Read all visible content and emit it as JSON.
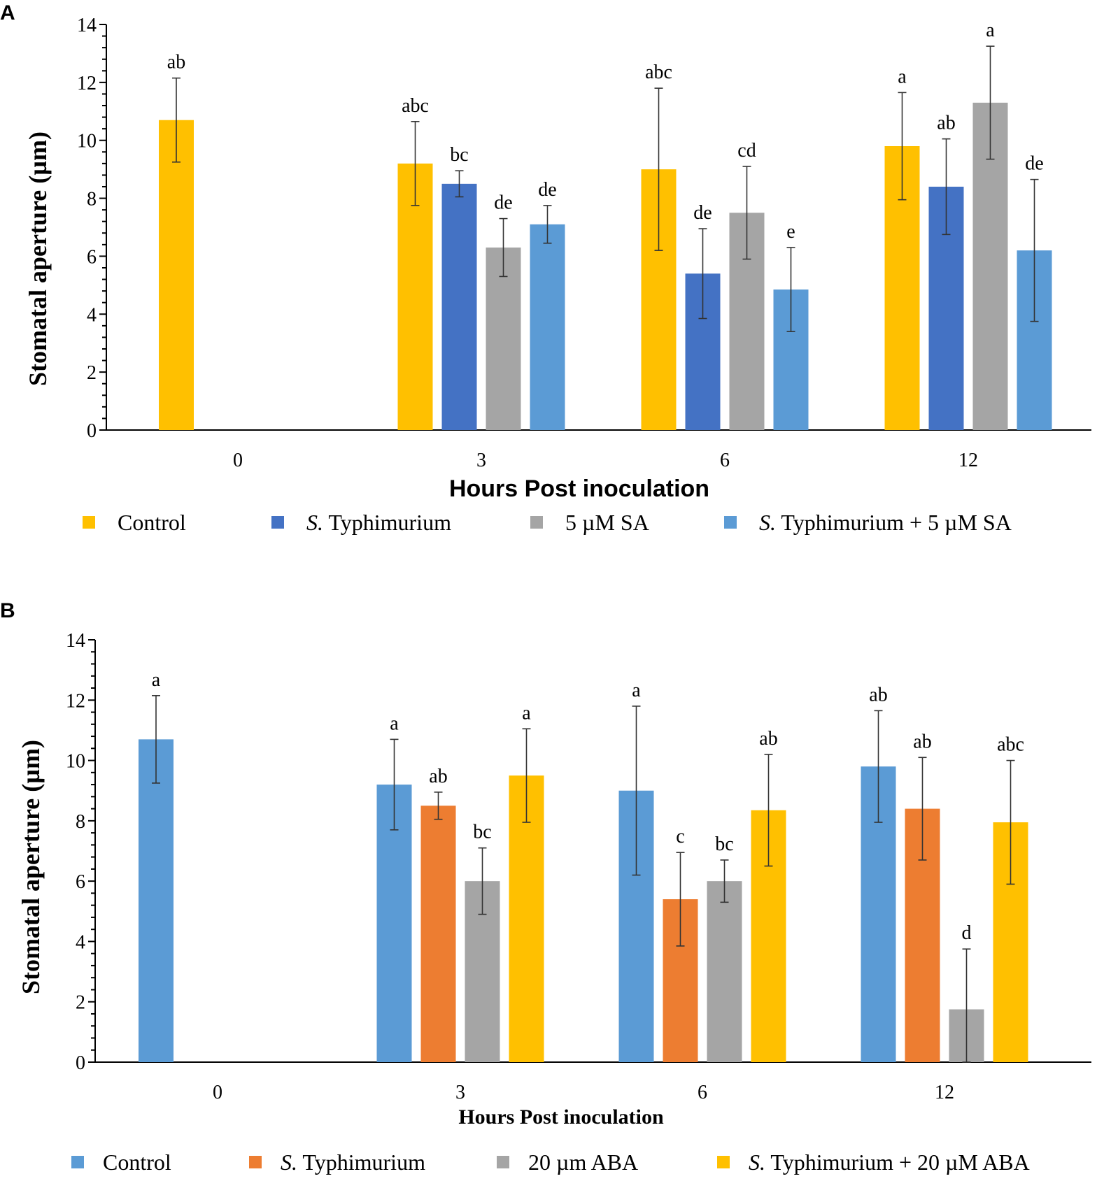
{
  "chart_data": [
    {
      "panel": "A",
      "type": "bar",
      "xlabel": "Hours Post inoculation",
      "ylabel": "Stomatal aperture (µm)",
      "ylim": [
        0,
        14
      ],
      "yticks": [
        0,
        2,
        4,
        6,
        8,
        10,
        12,
        14
      ],
      "categories": [
        "0",
        "3",
        "6",
        "12"
      ],
      "series": [
        {
          "name": "Control",
          "italic_prefix": "",
          "rest": "Control",
          "color": "#FFC000",
          "values": [
            10.7,
            9.2,
            9.0,
            9.8
          ],
          "errors": [
            1.45,
            1.45,
            2.8,
            1.85
          ],
          "letters": [
            "ab",
            "abc",
            "abc",
            "a"
          ]
        },
        {
          "name": "S. Typhimurium",
          "italic_prefix": "S.",
          "rest": " Typhimurium",
          "color": "#4472C4",
          "values": [
            null,
            8.5,
            5.4,
            8.4
          ],
          "errors": [
            null,
            0.45,
            1.55,
            1.65
          ],
          "letters": [
            null,
            "bc",
            "de",
            "ab"
          ]
        },
        {
          "name": "5 µM SA",
          "italic_prefix": "",
          "rest": "5 µM SA",
          "color": "#A5A5A5",
          "values": [
            null,
            6.3,
            7.5,
            11.3
          ],
          "errors": [
            null,
            1.0,
            1.6,
            1.95
          ],
          "letters": [
            null,
            "de",
            "cd",
            "a"
          ]
        },
        {
          "name": "S. Typhimurium + 5 µM SA",
          "italic_prefix": "S.",
          "rest": " Typhimurium + 5 µM SA",
          "color": "#5B9BD5",
          "values": [
            null,
            7.1,
            4.85,
            6.2
          ],
          "errors": [
            null,
            0.65,
            1.45,
            2.45
          ],
          "letters": [
            null,
            "de",
            "e",
            "de"
          ]
        }
      ]
    },
    {
      "panel": "B",
      "type": "bar",
      "xlabel": "Hours Post inoculation",
      "ylabel": "Stomatal aperture (µm)",
      "ylim": [
        0,
        14
      ],
      "yticks": [
        0,
        2,
        4,
        6,
        8,
        10,
        12,
        14
      ],
      "categories": [
        "0",
        "3",
        "6",
        "12"
      ],
      "series": [
        {
          "name": "Control",
          "italic_prefix": "",
          "rest": "Control",
          "color": "#5B9BD5",
          "values": [
            10.7,
            9.2,
            9.0,
            9.8
          ],
          "errors": [
            1.45,
            1.5,
            2.8,
            1.85
          ],
          "letters": [
            "a",
            "a",
            "a",
            "ab"
          ]
        },
        {
          "name": "S. Typhimurium",
          "italic_prefix": "S.",
          "rest": " Typhimurium",
          "color": "#ED7D31",
          "values": [
            null,
            8.5,
            5.4,
            8.4
          ],
          "errors": [
            null,
            0.45,
            1.55,
            1.7
          ],
          "letters": [
            null,
            "ab",
            "c",
            "ab"
          ]
        },
        {
          "name": "20 µm ABA",
          "italic_prefix": "",
          "rest": "20 µm ABA",
          "color": "#A5A5A5",
          "values": [
            null,
            6.0,
            6.0,
            1.75
          ],
          "errors": [
            null,
            1.1,
            0.7,
            2.0
          ],
          "letters": [
            null,
            "bc",
            "bc",
            "d"
          ]
        },
        {
          "name": "S. Typhimurium + 20 µM ABA",
          "italic_prefix": "S.",
          "rest": " Typhimurium + 20 µM ABA",
          "color": "#FFC000",
          "values": [
            null,
            9.5,
            8.35,
            7.95
          ],
          "errors": [
            null,
            1.55,
            1.85,
            2.05
          ],
          "letters": [
            null,
            "a",
            "ab",
            "abc"
          ]
        }
      ]
    }
  ]
}
